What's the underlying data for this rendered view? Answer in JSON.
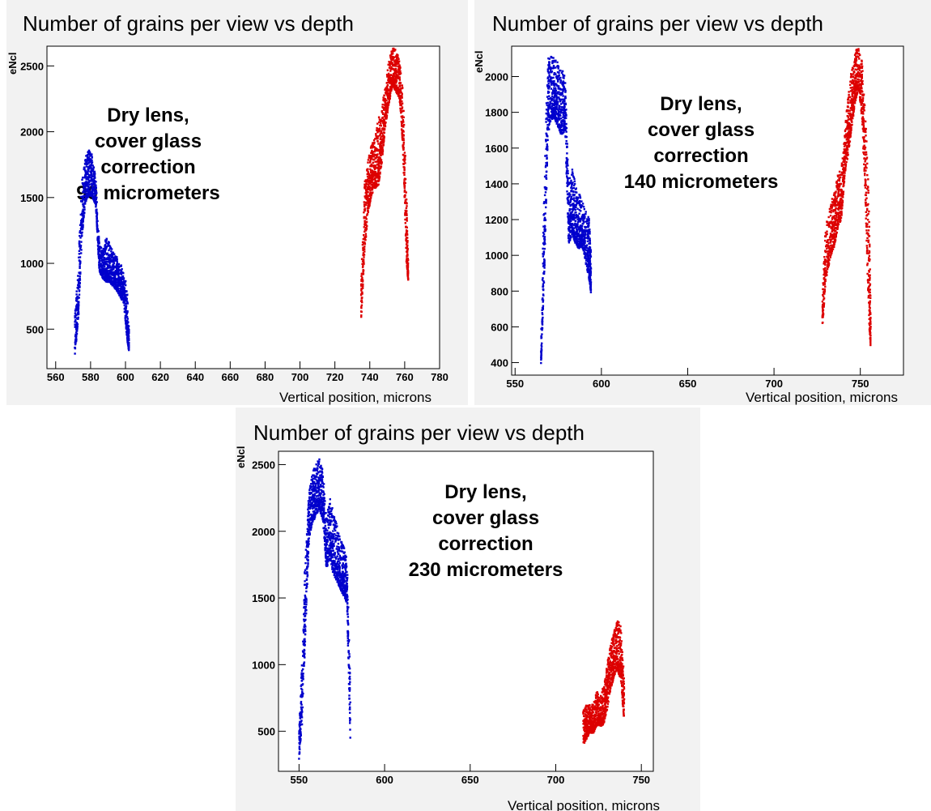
{
  "chart_data": [
    {
      "type": "scatter",
      "title": "Number of grains per view vs depth",
      "xlabel": "Vertical position, microns",
      "ylabel": "eNcl",
      "xlim": [
        555,
        780
      ],
      "ylim": [
        200,
        2650
      ],
      "xticks": [
        560,
        580,
        600,
        620,
        640,
        660,
        680,
        700,
        720,
        740,
        760,
        780
      ],
      "yticks": [
        500,
        1000,
        1500,
        2000,
        2500
      ],
      "ytick_labels": [
        "500",
        "1000",
        "1500",
        "2000",
        "2500"
      ],
      "annotation": [
        "Dry lens,",
        "cover glass",
        "correction",
        "90 micrometers"
      ],
      "series": [
        {
          "color": "#0000cc",
          "envelope": [
            [
              571,
              250,
              600
            ],
            [
              573,
              500,
              1000
            ],
            [
              575,
              1100,
              1650
            ],
            [
              577,
              1400,
              1800
            ],
            [
              579,
              1450,
              1880
            ],
            [
              581,
              1450,
              1820
            ],
            [
              583,
              1400,
              1650
            ],
            [
              585,
              900,
              1150
            ],
            [
              587,
              850,
              1100
            ],
            [
              589,
              800,
              1200
            ],
            [
              591,
              800,
              1150
            ],
            [
              593,
              780,
              1080
            ],
            [
              595,
              750,
              1050
            ],
            [
              597,
              700,
              1000
            ],
            [
              599,
              650,
              950
            ],
            [
              601,
              350,
              800
            ],
            [
              602,
              300,
              500
            ]
          ]
        },
        {
          "color": "#dd0000",
          "envelope": [
            [
              735,
              480,
              900
            ],
            [
              737,
              1000,
              1600
            ],
            [
              739,
              1300,
              1800
            ],
            [
              741,
              1450,
              1900
            ],
            [
              743,
              1500,
              1980
            ],
            [
              745,
              1500,
              2100
            ],
            [
              747,
              1700,
              2200
            ],
            [
              749,
              2000,
              2350
            ],
            [
              751,
              2150,
              2550
            ],
            [
              753,
              2300,
              2640
            ],
            [
              755,
              2250,
              2620
            ],
            [
              757,
              2200,
              2550
            ],
            [
              759,
              1800,
              2300
            ],
            [
              761,
              900,
              1600
            ],
            [
              762,
              850,
              1000
            ]
          ]
        }
      ]
    },
    {
      "type": "scatter",
      "title": "Number of grains per view vs depth",
      "xlabel": "Vertical position, microns",
      "ylabel": "eNcl",
      "xlim": [
        548,
        775
      ],
      "ylim": [
        330,
        2170
      ],
      "xticks": [
        550,
        600,
        650,
        700,
        750
      ],
      "yticks": [
        400,
        600,
        800,
        1000,
        1200,
        1400,
        1600,
        1800,
        2000
      ],
      "ytick_labels": [
        "400",
        "600",
        "800",
        "1000",
        "1200",
        "1400",
        "1600",
        "1800",
        "2000"
      ],
      "annotation": [
        "Dry lens,",
        "cover glass",
        "correction",
        "140 micrometers"
      ],
      "series": [
        {
          "color": "#0000cc",
          "envelope": [
            [
              565,
              350,
              500
            ],
            [
              567,
              800,
              1500
            ],
            [
              569,
              1600,
              2100
            ],
            [
              571,
              1700,
              2120
            ],
            [
              573,
              1700,
              2100
            ],
            [
              575,
              1650,
              2080
            ],
            [
              577,
              1600,
              2050
            ],
            [
              579,
              1650,
              2000
            ],
            [
              581,
              1000,
              1400
            ],
            [
              583,
              1050,
              1500
            ],
            [
              585,
              1000,
              1400
            ],
            [
              587,
              980,
              1350
            ],
            [
              589,
              1000,
              1300
            ],
            [
              591,
              900,
              1250
            ],
            [
              593,
              800,
              1200
            ],
            [
              594,
              750,
              1000
            ]
          ]
        },
        {
          "color": "#dd0000",
          "envelope": [
            [
              728,
              550,
              800
            ],
            [
              730,
              800,
              1200
            ],
            [
              733,
              950,
              1300
            ],
            [
              735,
              1000,
              1350
            ],
            [
              737,
              1100,
              1450
            ],
            [
              739,
              1150,
              1500
            ],
            [
              741,
              1400,
              1700
            ],
            [
              743,
              1500,
              1900
            ],
            [
              745,
              1650,
              2050
            ],
            [
              747,
              1800,
              2150
            ],
            [
              749,
              1900,
              2160
            ],
            [
              751,
              1700,
              2100
            ],
            [
              753,
              1200,
              1800
            ],
            [
              755,
              500,
              1300
            ],
            [
              756,
              450,
              700
            ]
          ]
        }
      ]
    },
    {
      "type": "scatter",
      "title": "Number of grains per view vs depth",
      "xlabel": "Vertical position, microns",
      "ylabel": "eNcl",
      "xlim": [
        538,
        757
      ],
      "ylim": [
        200,
        2600
      ],
      "xticks": [
        550,
        600,
        650,
        700,
        750
      ],
      "yticks": [
        500,
        1000,
        1500,
        2000,
        2500
      ],
      "ytick_labels": [
        "500",
        "1000",
        "1500",
        "2000",
        "2500"
      ],
      "annotation": [
        "Dry lens,",
        "cover glass",
        "correction",
        "230 micrometers"
      ],
      "series": [
        {
          "color": "#0000cc",
          "envelope": [
            [
              550,
              250,
              500
            ],
            [
              552,
              500,
              1100
            ],
            [
              554,
              1200,
              2000
            ],
            [
              556,
              1900,
              2300
            ],
            [
              558,
              2000,
              2450
            ],
            [
              560,
              2050,
              2500
            ],
            [
              562,
              2100,
              2550
            ],
            [
              564,
              2000,
              2450
            ],
            [
              566,
              1650,
              2100
            ],
            [
              568,
              1700,
              2250
            ],
            [
              570,
              1600,
              2150
            ],
            [
              572,
              1550,
              2050
            ],
            [
              574,
              1500,
              1950
            ],
            [
              576,
              1450,
              1900
            ],
            [
              578,
              1400,
              1800
            ],
            [
              580,
              300,
              900
            ]
          ]
        },
        {
          "color": "#dd0000",
          "envelope": [
            [
              716,
              350,
              650
            ],
            [
              718,
              400,
              700
            ],
            [
              720,
              450,
              700
            ],
            [
              722,
              450,
              700
            ],
            [
              724,
              500,
              800
            ],
            [
              726,
              500,
              750
            ],
            [
              728,
              500,
              850
            ],
            [
              730,
              600,
              1000
            ],
            [
              732,
              750,
              1150
            ],
            [
              734,
              850,
              1250
            ],
            [
              736,
              900,
              1330
            ],
            [
              738,
              800,
              1300
            ],
            [
              740,
              500,
              900
            ]
          ]
        }
      ]
    }
  ]
}
